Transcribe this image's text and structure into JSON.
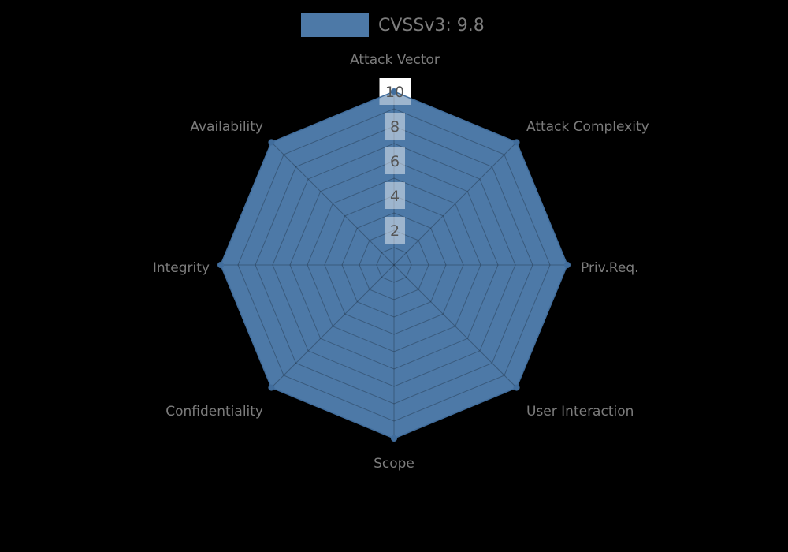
{
  "chart_data": {
    "type": "radar",
    "legend": {
      "label": "CVSSv3: 9.8",
      "position": "top-center",
      "swatch_color": "#4d79a7"
    },
    "axes": [
      "Attack Vector",
      "Attack Complexity",
      "Priv.Req.",
      "User Interaction",
      "Scope",
      "Confidentiality",
      "Integrity",
      "Availability"
    ],
    "series": [
      {
        "name": "CVSSv3: 9.8",
        "values": [
          10,
          10,
          10,
          10,
          10,
          10,
          10,
          10
        ]
      }
    ],
    "rlim": [
      0,
      10
    ],
    "ring_interval": 1,
    "tick_values": [
      2,
      4,
      6,
      8,
      10
    ],
    "tick_labels": [
      "2",
      "4",
      "6",
      "8",
      "10"
    ],
    "grid": true,
    "colors": {
      "background": "#000000",
      "fill": "#4d79a7",
      "line": "#416d9c",
      "marker": "#416d9c",
      "grid_line": "rgba(0,0,0,0.25)",
      "tick_box_overlay": "rgba(255,255,255,0.45)",
      "tick_box_top": "#ffffff",
      "tick_text": "#555555",
      "axis_label": "#7c7c7c",
      "legend_text": "#7c7c7c"
    }
  }
}
